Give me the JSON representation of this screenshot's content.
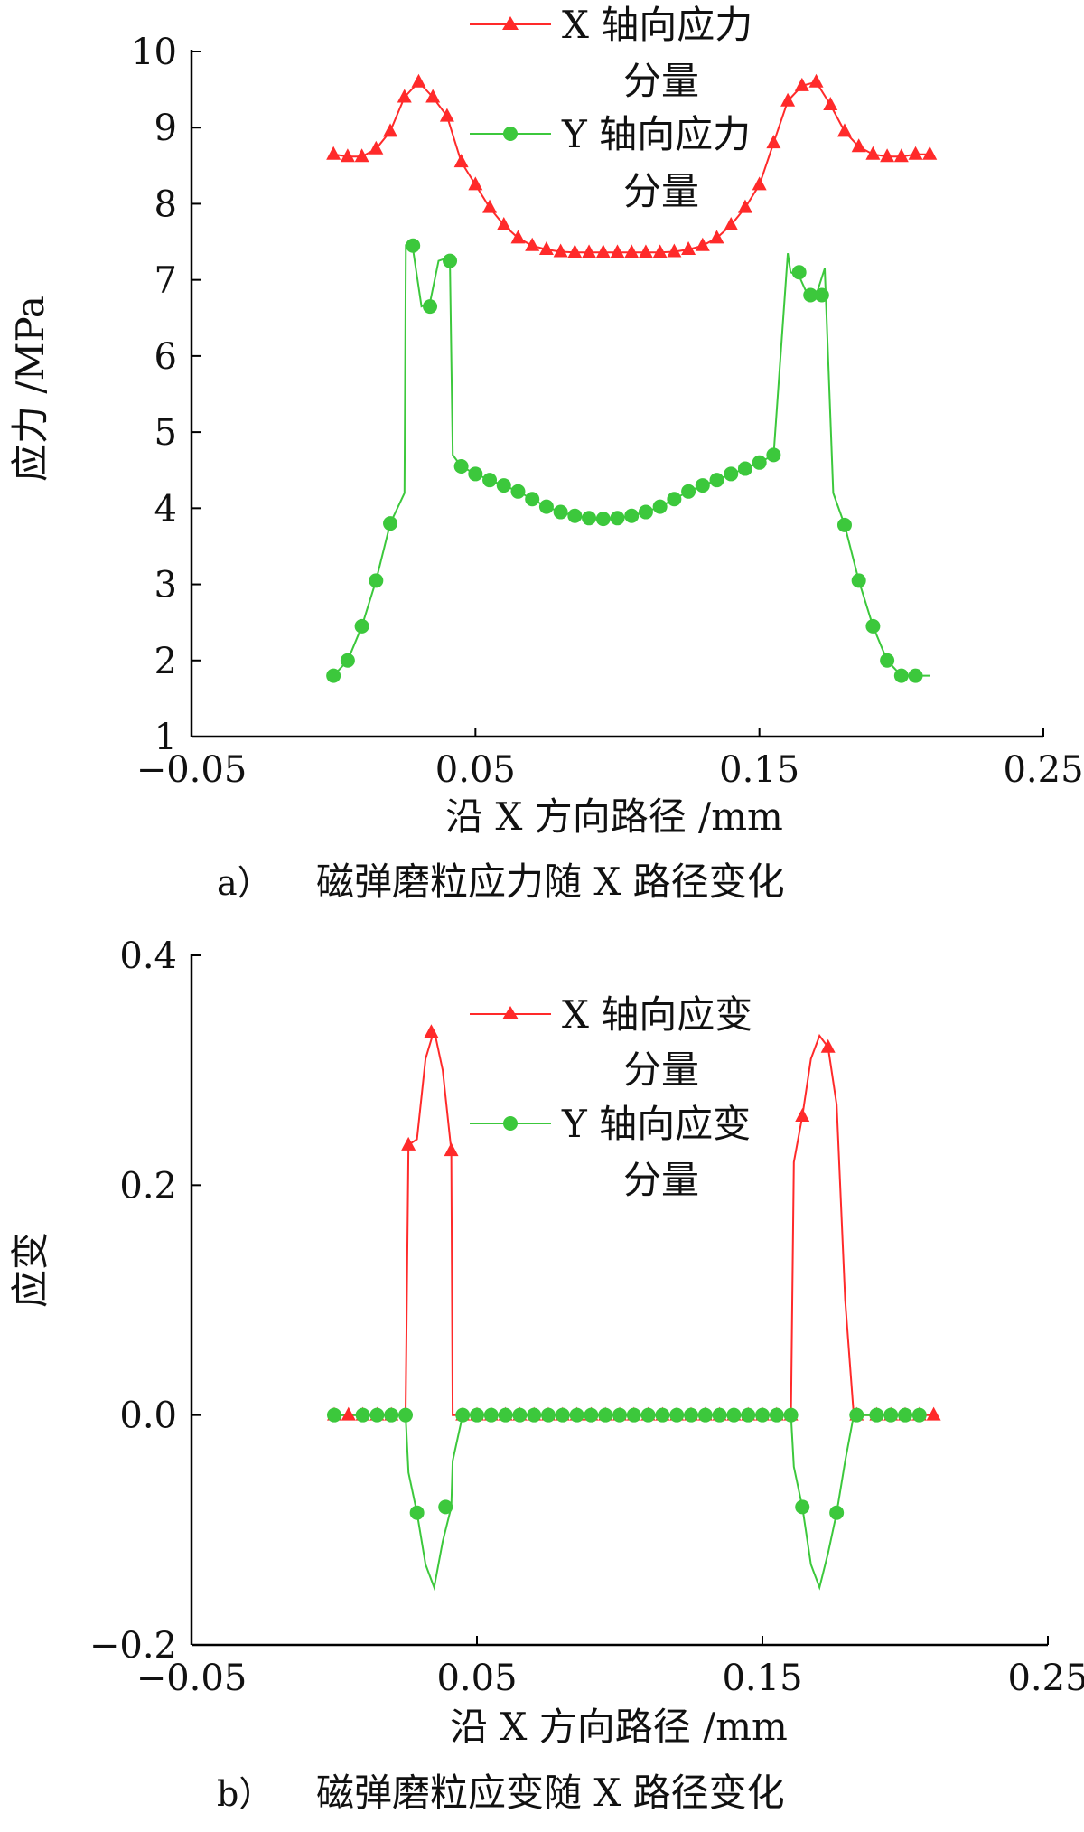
{
  "chart_data": [
    {
      "type": "line",
      "caption_label": "a）",
      "caption_text": "磁弹磨粒应力随 X 路径变化",
      "xlabel": "沿 X 方向路径 /mm",
      "ylabel": "应力 /MPa",
      "xlim": [
        -0.05,
        0.25
      ],
      "ylim": [
        1,
        10
      ],
      "xticks": [
        "−0.05",
        "0.05",
        "0.15",
        "0.25"
      ],
      "xtick_values": [
        -0.05,
        0.05,
        0.15,
        0.25
      ],
      "yticks": [
        "1",
        "2",
        "3",
        "4",
        "5",
        "6",
        "7",
        "8",
        "9",
        "10"
      ],
      "ytick_values": [
        1,
        2,
        3,
        4,
        5,
        6,
        7,
        8,
        9,
        10
      ],
      "legend_position": "top-center",
      "series": [
        {
          "name_line1": "X 轴向应力",
          "name_line2": "分量",
          "color": "#ff2a2a",
          "marker": "triangle",
          "x": [
            0.0,
            0.005,
            0.01,
            0.015,
            0.02,
            0.025,
            0.03,
            0.035,
            0.04,
            0.045,
            0.05,
            0.055,
            0.06,
            0.065,
            0.07,
            0.075,
            0.08,
            0.085,
            0.09,
            0.095,
            0.1,
            0.105,
            0.11,
            0.115,
            0.12,
            0.125,
            0.13,
            0.135,
            0.14,
            0.145,
            0.15,
            0.155,
            0.16,
            0.165,
            0.17,
            0.175,
            0.18,
            0.185,
            0.19,
            0.195,
            0.2,
            0.205,
            0.21
          ],
          "y": [
            8.65,
            8.62,
            8.62,
            8.72,
            8.95,
            9.4,
            9.6,
            9.4,
            9.15,
            8.55,
            8.25,
            7.95,
            7.72,
            7.55,
            7.45,
            7.4,
            7.37,
            7.36,
            7.36,
            7.36,
            7.36,
            7.36,
            7.36,
            7.36,
            7.37,
            7.4,
            7.45,
            7.55,
            7.72,
            7.95,
            8.25,
            8.8,
            9.35,
            9.55,
            9.6,
            9.3,
            8.95,
            8.75,
            8.65,
            8.62,
            8.62,
            8.65,
            8.65
          ]
        },
        {
          "name_line1": "Y 轴向应力",
          "name_line2": "分量",
          "color": "#3cc83c",
          "marker": "circle",
          "x": [
            0.0,
            0.005,
            0.01,
            0.015,
            0.02,
            0.025,
            0.0255,
            0.028,
            0.031,
            0.034,
            0.037,
            0.041,
            0.042,
            0.045,
            0.05,
            0.055,
            0.06,
            0.065,
            0.07,
            0.075,
            0.08,
            0.085,
            0.09,
            0.095,
            0.1,
            0.105,
            0.11,
            0.115,
            0.12,
            0.125,
            0.13,
            0.135,
            0.14,
            0.145,
            0.15,
            0.155,
            0.16,
            0.161,
            0.164,
            0.167,
            0.17,
            0.173,
            0.176,
            0.18,
            0.185,
            0.19,
            0.195,
            0.2,
            0.205,
            0.21
          ],
          "y": [
            1.8,
            2.0,
            2.45,
            3.05,
            3.8,
            4.2,
            7.45,
            7.4,
            6.65,
            6.7,
            7.25,
            7.3,
            4.7,
            4.55,
            4.45,
            4.37,
            4.3,
            4.22,
            4.12,
            4.02,
            3.95,
            3.9,
            3.87,
            3.86,
            3.87,
            3.9,
            3.95,
            4.02,
            4.12,
            4.22,
            4.3,
            4.37,
            4.45,
            4.52,
            4.6,
            4.7,
            7.35,
            7.1,
            7.05,
            6.8,
            6.8,
            7.15,
            4.2,
            3.78,
            3.05,
            2.45,
            2.0,
            1.8,
            1.8,
            1.8
          ],
          "marker_x": [
            0.0,
            0.005,
            0.01,
            0.015,
            0.02,
            0.028,
            0.034,
            0.041,
            0.045,
            0.05,
            0.055,
            0.06,
            0.065,
            0.07,
            0.075,
            0.08,
            0.085,
            0.09,
            0.095,
            0.1,
            0.105,
            0.11,
            0.115,
            0.12,
            0.125,
            0.13,
            0.135,
            0.14,
            0.145,
            0.15,
            0.155,
            0.164,
            0.168,
            0.172,
            0.18,
            0.185,
            0.19,
            0.195,
            0.2,
            0.205
          ],
          "marker_y": [
            1.8,
            2.0,
            2.45,
            3.05,
            3.8,
            7.45,
            6.65,
            7.25,
            4.55,
            4.45,
            4.37,
            4.3,
            4.22,
            4.12,
            4.02,
            3.95,
            3.9,
            3.87,
            3.86,
            3.87,
            3.9,
            3.95,
            4.02,
            4.12,
            4.22,
            4.3,
            4.37,
            4.45,
            4.52,
            4.6,
            4.7,
            7.1,
            6.8,
            6.8,
            3.78,
            3.05,
            2.45,
            2.0,
            1.8,
            1.8
          ]
        }
      ]
    },
    {
      "type": "line",
      "caption_label": "b）",
      "caption_text": "磁弹磨粒应变随 X 路径变化",
      "xlabel": "沿 X 方向路径 /mm",
      "ylabel": "应变",
      "xlim": [
        -0.05,
        0.25
      ],
      "ylim": [
        -0.2,
        0.4
      ],
      "xticks": [
        "−0.05",
        "0.05",
        "0.15",
        "0.25"
      ],
      "xtick_values": [
        -0.05,
        0.05,
        0.15,
        0.25
      ],
      "yticks": [
        "−0.2",
        "0.0",
        "0.2",
        "0.4"
      ],
      "ytick_values": [
        -0.2,
        0.0,
        0.2,
        0.4
      ],
      "legend_position": "top-center",
      "series": [
        {
          "name_line1": "X 轴向应变",
          "name_line2": "分量",
          "color": "#ff2a2a",
          "marker": "triangle",
          "x": [
            0.0,
            0.005,
            0.01,
            0.015,
            0.02,
            0.025,
            0.026,
            0.029,
            0.032,
            0.035,
            0.038,
            0.041,
            0.0415,
            0.045,
            0.05,
            0.055,
            0.06,
            0.065,
            0.07,
            0.075,
            0.08,
            0.085,
            0.09,
            0.095,
            0.1,
            0.105,
            0.11,
            0.115,
            0.12,
            0.125,
            0.13,
            0.135,
            0.14,
            0.145,
            0.15,
            0.155,
            0.16,
            0.161,
            0.164,
            0.167,
            0.17,
            0.173,
            0.176,
            0.179,
            0.182,
            0.185,
            0.19,
            0.195,
            0.2,
            0.205,
            0.21
          ],
          "y": [
            0,
            0,
            0,
            0,
            0,
            0,
            0.235,
            0.24,
            0.31,
            0.335,
            0.3,
            0.23,
            0,
            0,
            0,
            0,
            0,
            0,
            0,
            0,
            0,
            0,
            0,
            0,
            0,
            0,
            0,
            0,
            0,
            0,
            0,
            0,
            0,
            0,
            0,
            0,
            0,
            0.22,
            0.26,
            0.31,
            0.33,
            0.32,
            0.27,
            0.1,
            0,
            0,
            0,
            0,
            0,
            0,
            0
          ],
          "marker_x": [
            0.0,
            0.005,
            0.01,
            0.015,
            0.02,
            0.026,
            0.034,
            0.041,
            0.045,
            0.05,
            0.055,
            0.06,
            0.065,
            0.07,
            0.075,
            0.08,
            0.085,
            0.09,
            0.095,
            0.1,
            0.105,
            0.11,
            0.115,
            0.12,
            0.125,
            0.13,
            0.135,
            0.14,
            0.145,
            0.15,
            0.155,
            0.16,
            0.164,
            0.173,
            0.183,
            0.19,
            0.195,
            0.2,
            0.205,
            0.21
          ],
          "marker_y": [
            0,
            0,
            0,
            0,
            0,
            0.235,
            0.333,
            0.23,
            0,
            0,
            0,
            0,
            0,
            0,
            0,
            0,
            0,
            0,
            0,
            0,
            0,
            0,
            0,
            0,
            0,
            0,
            0,
            0,
            0,
            0,
            0,
            0,
            0.26,
            0.32,
            0,
            0,
            0,
            0,
            0,
            0
          ]
        },
        {
          "name_line1": "Y 轴向应变",
          "name_line2": "分量",
          "color": "#3cc83c",
          "marker": "circle",
          "x": [
            0.0,
            0.005,
            0.01,
            0.015,
            0.02,
            0.025,
            0.026,
            0.029,
            0.032,
            0.035,
            0.038,
            0.041,
            0.0415,
            0.045,
            0.05,
            0.055,
            0.06,
            0.065,
            0.07,
            0.075,
            0.08,
            0.085,
            0.09,
            0.095,
            0.1,
            0.105,
            0.11,
            0.115,
            0.12,
            0.125,
            0.13,
            0.135,
            0.14,
            0.145,
            0.15,
            0.155,
            0.16,
            0.161,
            0.164,
            0.167,
            0.17,
            0.173,
            0.176,
            0.179,
            0.182,
            0.185,
            0.19,
            0.195,
            0.2,
            0.205
          ],
          "y": [
            0,
            0,
            0,
            0,
            0,
            0,
            -0.05,
            -0.085,
            -0.13,
            -0.15,
            -0.11,
            -0.08,
            -0.04,
            0,
            0,
            0,
            0,
            0,
            0,
            0,
            0,
            0,
            0,
            0,
            0,
            0,
            0,
            0,
            0,
            0,
            0,
            0,
            0,
            0,
            0,
            0,
            0,
            -0.045,
            -0.08,
            -0.13,
            -0.15,
            -0.12,
            -0.085,
            -0.04,
            0,
            0,
            0,
            0,
            0,
            0
          ],
          "marker_x": [
            0.0,
            0.01,
            0.015,
            0.02,
            0.025,
            0.029,
            0.039,
            0.045,
            0.05,
            0.055,
            0.06,
            0.065,
            0.07,
            0.075,
            0.08,
            0.085,
            0.09,
            0.095,
            0.1,
            0.105,
            0.11,
            0.115,
            0.12,
            0.125,
            0.13,
            0.135,
            0.14,
            0.145,
            0.15,
            0.155,
            0.16,
            0.164,
            0.176,
            0.183,
            0.19,
            0.195,
            0.2,
            0.205
          ],
          "marker_y": [
            0,
            0,
            0,
            0,
            0,
            -0.085,
            -0.08,
            0,
            0,
            0,
            0,
            0,
            0,
            0,
            0,
            0,
            0,
            0,
            0,
            0,
            0,
            0,
            0,
            0,
            0,
            0,
            0,
            0,
            0,
            0,
            0,
            -0.08,
            -0.085,
            0,
            0,
            0,
            0,
            0
          ]
        }
      ]
    }
  ]
}
